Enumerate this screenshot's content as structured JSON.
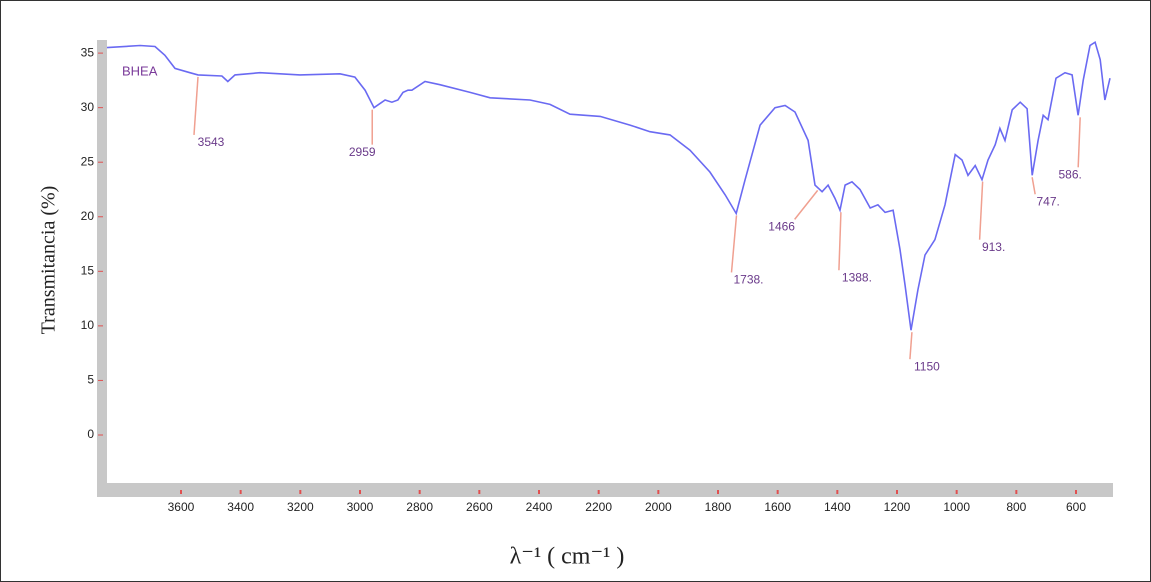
{
  "chart_data": {
    "type": "line",
    "x_label": "λ⁻¹ ( cm⁻¹ )",
    "y_label": "Transmitancia (%)",
    "x": [
      3848,
      3737,
      3687,
      3654,
      3620,
      3570,
      3543,
      3463,
      3443,
      3419,
      3335,
      3201,
      3067,
      3017,
      2983,
      2953,
      2916,
      2893,
      2873,
      2856,
      2839,
      2826,
      2782,
      2732,
      2631,
      2564,
      2430,
      2363,
      2296,
      2195,
      2095,
      2028,
      1961,
      1894,
      1827,
      1776,
      1739,
      1709,
      1659,
      1609,
      1575,
      1542,
      1498,
      1475,
      1451,
      1431,
      1408,
      1391,
      1374,
      1351,
      1324,
      1290,
      1264,
      1240,
      1213,
      1190,
      1173,
      1153,
      1130,
      1106,
      1073,
      1039,
      1005,
      982,
      962,
      938,
      915,
      895,
      871,
      855,
      838,
      814,
      787,
      764,
      747,
      727,
      710,
      694,
      667,
      637,
      613,
      593,
      576,
      553,
      536,
      519,
      503,
      486
    ],
    "series": [
      {
        "name": "BHEA",
        "color": "#6a6af2",
        "values": [
          35.5,
          35.7,
          35.6,
          34.8,
          33.6,
          33.2,
          33.0,
          32.9,
          32.4,
          33.0,
          33.2,
          33.0,
          33.1,
          32.8,
          31.6,
          30.0,
          30.7,
          30.5,
          30.7,
          31.4,
          31.6,
          31.6,
          32.4,
          32.1,
          31.4,
          30.9,
          30.7,
          30.3,
          29.4,
          29.2,
          28.4,
          27.8,
          27.5,
          26.1,
          24.1,
          22.0,
          20.3,
          23.4,
          28.4,
          30.0,
          30.2,
          29.6,
          27.0,
          22.9,
          22.3,
          22.9,
          21.7,
          20.6,
          22.9,
          23.2,
          22.5,
          20.8,
          21.1,
          20.4,
          20.6,
          17.0,
          13.7,
          9.6,
          13.3,
          16.5,
          17.9,
          21.1,
          25.7,
          25.2,
          23.8,
          24.7,
          23.4,
          25.2,
          26.6,
          28.1,
          27.0,
          29.8,
          30.5,
          29.9,
          23.8,
          27.0,
          29.3,
          28.9,
          32.7,
          33.2,
          33.0,
          29.3,
          32.5,
          35.7,
          36.0,
          34.4,
          30.7,
          32.7
        ]
      }
    ],
    "annotations": [
      {
        "text": "3543",
        "x": 3543,
        "y": 33.0
      },
      {
        "text": "2959",
        "x": 2959,
        "y": 30.0
      },
      {
        "text": "1738.",
        "x": 1738,
        "y": 20.3
      },
      {
        "text": "1466",
        "x": 1466,
        "y": 22.6
      },
      {
        "text": "1388.",
        "x": 1388,
        "y": 20.6
      },
      {
        "text": "1150",
        "x": 1150,
        "y": 9.6
      },
      {
        "text": "913.",
        "x": 913,
        "y": 23.4
      },
      {
        "text": "747.",
        "x": 747,
        "y": 23.8
      },
      {
        "text": "586.",
        "x": 586,
        "y": 29.3
      }
    ],
    "xlim": [
      3848,
      476
    ],
    "ylim": [
      -4.4,
      36.2
    ],
    "xticks": [
      3600,
      3400,
      3200,
      3000,
      2800,
      2600,
      2400,
      2200,
      2000,
      1800,
      1600,
      1400,
      1200,
      1000,
      800,
      600
    ],
    "yticks": [
      0,
      5,
      10,
      15,
      20,
      25,
      30,
      35
    ]
  }
}
